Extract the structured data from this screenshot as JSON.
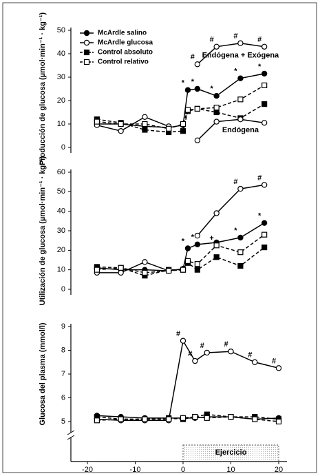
{
  "chart_data": [
    {
      "type": "line",
      "ylabel": "Producción de glucosa (µmol·min⁻¹ · kg⁻¹)",
      "x": [
        -18,
        -13,
        -8,
        -3,
        0,
        1,
        3,
        7,
        12,
        17
      ],
      "xlim": [
        -20,
        20
      ],
      "ylim": [
        0,
        50
      ],
      "yticks": [
        0,
        10,
        20,
        30,
        40,
        50
      ],
      "legend": "upper left",
      "series": [
        {
          "name": "McArdle salino",
          "color": "#000000",
          "marker": "filled-circle",
          "dash": "solid",
          "values": [
            10,
            10,
            9,
            8.5,
            9.5,
            24.5,
            25,
            22,
            29.5,
            31.5
          ],
          "significance": [
            null,
            null,
            null,
            null,
            null,
            "*",
            "*",
            "*",
            "*",
            "*"
          ]
        },
        {
          "name": "McArdle glucosa",
          "color": "#000000",
          "marker": "open-circle",
          "dash": "solid",
          "label": "Endógena + Exógena",
          "values": [
            9.5,
            7,
            13,
            9,
            null,
            null,
            35.5,
            43,
            44.5,
            43
          ],
          "significance": [
            null,
            null,
            null,
            null,
            null,
            null,
            "#",
            "#",
            "#",
            "#"
          ]
        },
        {
          "name": "Control absoluto",
          "color": "#000000",
          "marker": "filled-square",
          "dash": "dashed",
          "values": [
            12,
            10.5,
            7.5,
            6.5,
            7,
            15.5,
            16.5,
            15,
            12.5,
            18.5
          ]
        },
        {
          "name": "Control relativo",
          "color": "#000000",
          "marker": "open-square",
          "dash": "dashed",
          "values": [
            11,
            10,
            10,
            8,
            10,
            16,
            16.5,
            17,
            20.5,
            26.5
          ]
        }
      ],
      "endogenous": {
        "name": "Endógena",
        "color": "#000000",
        "marker": "open-circle",
        "dash": "solid",
        "values": [
          null,
          null,
          null,
          null,
          null,
          null,
          3,
          11,
          12,
          10.5
        ]
      }
    },
    {
      "type": "line",
      "ylabel": "Utilización de glucosa (µmol·min⁻¹ · kg⁻¹)",
      "x": [
        -18,
        -13,
        -8,
        -3,
        0,
        1,
        3,
        7,
        12,
        17
      ],
      "xlim": [
        -20,
        20
      ],
      "ylim": [
        0,
        60
      ],
      "yticks": [
        0,
        10,
        20,
        30,
        40,
        50,
        60
      ],
      "series": [
        {
          "name": "McArdle salino",
          "color": "#000000",
          "marker": "filled-circle",
          "dash": "solid",
          "values": [
            11,
            10,
            10,
            9.5,
            10.5,
            21,
            23,
            24,
            26.5,
            34
          ],
          "significance": [
            null,
            null,
            null,
            null,
            null,
            "*",
            "*",
            null,
            "*",
            "*"
          ]
        },
        {
          "name": "McArdle glucosa",
          "color": "#000000",
          "marker": "open-circle",
          "dash": "solid",
          "values": [
            8.5,
            8.5,
            14,
            9.5,
            null,
            null,
            27.5,
            39,
            51.5,
            53.5
          ],
          "significance": [
            null,
            null,
            null,
            null,
            null,
            null,
            null,
            null,
            "#",
            "#"
          ]
        },
        {
          "name": "Control absoluto",
          "color": "#000000",
          "marker": "filled-square",
          "dash": "dashed",
          "values": [
            11.5,
            11,
            7,
            10,
            10,
            13.5,
            10,
            16.5,
            12,
            21.5
          ]
        },
        {
          "name": "Control relativo",
          "color": "#000000",
          "marker": "open-square",
          "dash": "dashed",
          "values": [
            10,
            11,
            8.5,
            9.5,
            10,
            14.5,
            13,
            22.5,
            19,
            28
          ],
          "significance": [
            null,
            null,
            null,
            null,
            null,
            null,
            null,
            "+",
            null,
            null
          ]
        }
      ]
    },
    {
      "type": "line",
      "ylabel": "Glucosa del plasma (mmol/l)",
      "x": [
        -18,
        -13,
        -8,
        -3,
        0,
        2.5,
        5,
        10,
        15,
        20
      ],
      "xlim": [
        -20,
        20
      ],
      "xticks": [
        -20,
        -10,
        0,
        10,
        20
      ],
      "ylim": [
        5,
        9
      ],
      "yticks": [
        5,
        6,
        7,
        8,
        9
      ],
      "shaded_range": [
        0,
        20
      ],
      "shaded_label": "Ejercicio",
      "series": [
        {
          "name": "McArdle salino",
          "color": "#000000",
          "marker": "filled-circle",
          "dash": "solid",
          "values": [
            5.25,
            5.2,
            5.15,
            5.15,
            5.15,
            5.15,
            5.2,
            5.2,
            5.1,
            5.15
          ]
        },
        {
          "name": "McArdle glucosa",
          "color": "#000000",
          "marker": "open-circle",
          "dash": "solid",
          "values": [
            5.1,
            5.05,
            5.05,
            5.05,
            8.4,
            7.55,
            7.9,
            7.95,
            7.5,
            7.25
          ],
          "significance": [
            null,
            null,
            null,
            null,
            "#",
            "#",
            "#",
            "#",
            "#",
            "#"
          ]
        },
        {
          "name": "Control absoluto",
          "color": "#000000",
          "marker": "filled-square",
          "dash": "dashed",
          "values": [
            5.2,
            5.1,
            5.1,
            5.15,
            5.1,
            5.2,
            5.3,
            5.2,
            5.2,
            5.1
          ]
        },
        {
          "name": "Control relativo",
          "color": "#000000",
          "marker": "open-square",
          "dash": "dashed",
          "values": [
            5.05,
            5.1,
            5.1,
            5.1,
            5.15,
            5.2,
            5.15,
            5.2,
            5.1,
            5.0
          ]
        }
      ]
    }
  ]
}
